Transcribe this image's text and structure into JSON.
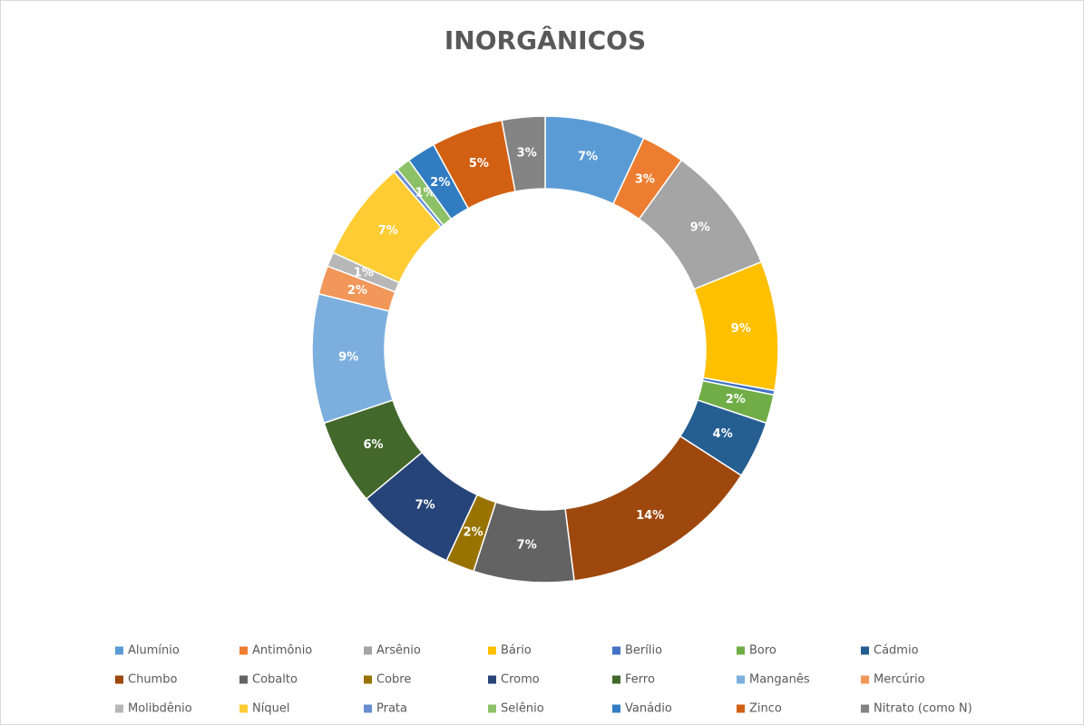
{
  "chart_data": {
    "type": "donut",
    "title": "INORGÂNICOS",
    "categories": [
      "Alumínio",
      "Antimônio",
      "Arsênio",
      "Bário",
      "Berílio",
      "Boro",
      "Cádmio",
      "Chumbo",
      "Cobalto",
      "Cobre",
      "Cromo",
      "Ferro",
      "Manganês",
      "Mercúrio",
      "Molibdênio",
      "Níquel",
      "Prata",
      "Selênio",
      "Vanádio",
      "Zinco",
      "Nitrato (como N)"
    ],
    "values": [
      7,
      3,
      9,
      9,
      0.3,
      2,
      4,
      14,
      7,
      2,
      7,
      6,
      9,
      2,
      1,
      7,
      0.3,
      1,
      2,
      5,
      3
    ],
    "value_labels": [
      "7%",
      "3%",
      "9%",
      "9%",
      null,
      "2%",
      "4%",
      "14%",
      "7%",
      "2%",
      "7%",
      "6%",
      "9%",
      "2%",
      "1%",
      "7%",
      null,
      "1%",
      "2%",
      "5%",
      "3%"
    ],
    "colors": [
      "#5b9bd5",
      "#ed7d31",
      "#a5a5a5",
      "#ffc000",
      "#4472c4",
      "#70ad47",
      "#255e91",
      "#9e480e",
      "#636363",
      "#997300",
      "#264478",
      "#43682b",
      "#7cafdd",
      "#f1975a",
      "#b7b7b7",
      "#ffcd33",
      "#698ed0",
      "#8cc168",
      "#327dc2",
      "#d26012",
      "#848484"
    ],
    "legend": "bottom"
  }
}
